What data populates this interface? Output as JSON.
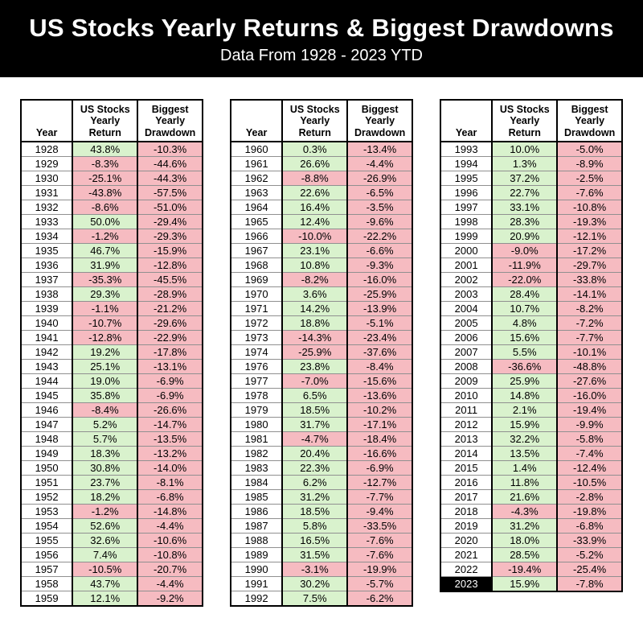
{
  "header": {
    "title": "US Stocks Yearly Returns & Biggest Drawdowns",
    "subtitle": "Data From 1928 - 2023 YTD"
  },
  "colors": {
    "banner_bg": "#000000",
    "banner_text": "#ffffff",
    "positive_bg": "#d9f2cd",
    "negative_bg": "#f6bbc1",
    "highlight_year_bg": "#000000",
    "highlight_year_text": "#ffffff",
    "row_line": "#909090",
    "grid_line": "#000000"
  },
  "chart_data": {
    "type": "table",
    "title": "US Stocks Yearly Returns & Biggest Drawdowns",
    "subtitle": "Data From 1928 - 2023 YTD",
    "columns": [
      "Year",
      "US Stocks Yearly Return",
      "Biggest Yearly Drawdown"
    ],
    "column_header_lines": [
      [
        "Year"
      ],
      [
        "US Stocks",
        "Yearly",
        "Return"
      ],
      [
        "Biggest",
        "Yearly",
        "Drawdown"
      ]
    ],
    "highlight_years": [
      2023
    ],
    "tables": [
      {
        "rows": [
          [
            1928,
            "43.8%",
            "-10.3%"
          ],
          [
            1929,
            "-8.3%",
            "-44.6%"
          ],
          [
            1930,
            "-25.1%",
            "-44.3%"
          ],
          [
            1931,
            "-43.8%",
            "-57.5%"
          ],
          [
            1932,
            "-8.6%",
            "-51.0%"
          ],
          [
            1933,
            "50.0%",
            "-29.4%"
          ],
          [
            1934,
            "-1.2%",
            "-29.3%"
          ],
          [
            1935,
            "46.7%",
            "-15.9%"
          ],
          [
            1936,
            "31.9%",
            "-12.8%"
          ],
          [
            1937,
            "-35.3%",
            "-45.5%"
          ],
          [
            1938,
            "29.3%",
            "-28.9%"
          ],
          [
            1939,
            "-1.1%",
            "-21.2%"
          ],
          [
            1940,
            "-10.7%",
            "-29.6%"
          ],
          [
            1941,
            "-12.8%",
            "-22.9%"
          ],
          [
            1942,
            "19.2%",
            "-17.8%"
          ],
          [
            1943,
            "25.1%",
            "-13.1%"
          ],
          [
            1944,
            "19.0%",
            "-6.9%"
          ],
          [
            1945,
            "35.8%",
            "-6.9%"
          ],
          [
            1946,
            "-8.4%",
            "-26.6%"
          ],
          [
            1947,
            "5.2%",
            "-14.7%"
          ],
          [
            1948,
            "5.7%",
            "-13.5%"
          ],
          [
            1949,
            "18.3%",
            "-13.2%"
          ],
          [
            1950,
            "30.8%",
            "-14.0%"
          ],
          [
            1951,
            "23.7%",
            "-8.1%"
          ],
          [
            1952,
            "18.2%",
            "-6.8%"
          ],
          [
            1953,
            "-1.2%",
            "-14.8%"
          ],
          [
            1954,
            "52.6%",
            "-4.4%"
          ],
          [
            1955,
            "32.6%",
            "-10.6%"
          ],
          [
            1956,
            "7.4%",
            "-10.8%"
          ],
          [
            1957,
            "-10.5%",
            "-20.7%"
          ],
          [
            1958,
            "43.7%",
            "-4.4%"
          ],
          [
            1959,
            "12.1%",
            "-9.2%"
          ]
        ]
      },
      {
        "rows": [
          [
            1960,
            "0.3%",
            "-13.4%"
          ],
          [
            1961,
            "26.6%",
            "-4.4%"
          ],
          [
            1962,
            "-8.8%",
            "-26.9%"
          ],
          [
            1963,
            "22.6%",
            "-6.5%"
          ],
          [
            1964,
            "16.4%",
            "-3.5%"
          ],
          [
            1965,
            "12.4%",
            "-9.6%"
          ],
          [
            1966,
            "-10.0%",
            "-22.2%"
          ],
          [
            1967,
            "23.1%",
            "-6.6%"
          ],
          [
            1968,
            "10.8%",
            "-9.3%"
          ],
          [
            1969,
            "-8.2%",
            "-16.0%"
          ],
          [
            1970,
            "3.6%",
            "-25.9%"
          ],
          [
            1971,
            "14.2%",
            "-13.9%"
          ],
          [
            1972,
            "18.8%",
            "-5.1%"
          ],
          [
            1973,
            "-14.3%",
            "-23.4%"
          ],
          [
            1974,
            "-25.9%",
            "-37.6%"
          ],
          [
            1976,
            "23.8%",
            "-8.4%"
          ],
          [
            1977,
            "-7.0%",
            "-15.6%"
          ],
          [
            1978,
            "6.5%",
            "-13.6%"
          ],
          [
            1979,
            "18.5%",
            "-10.2%"
          ],
          [
            1980,
            "31.7%",
            "-17.1%"
          ],
          [
            1981,
            "-4.7%",
            "-18.4%"
          ],
          [
            1982,
            "20.4%",
            "-16.6%"
          ],
          [
            1983,
            "22.3%",
            "-6.9%"
          ],
          [
            1984,
            "6.2%",
            "-12.7%"
          ],
          [
            1985,
            "31.2%",
            "-7.7%"
          ],
          [
            1986,
            "18.5%",
            "-9.4%"
          ],
          [
            1987,
            "5.8%",
            "-33.5%"
          ],
          [
            1988,
            "16.5%",
            "-7.6%"
          ],
          [
            1989,
            "31.5%",
            "-7.6%"
          ],
          [
            1990,
            "-3.1%",
            "-19.9%"
          ],
          [
            1991,
            "30.2%",
            "-5.7%"
          ],
          [
            1992,
            "7.5%",
            "-6.2%"
          ]
        ]
      },
      {
        "rows": [
          [
            1993,
            "10.0%",
            "-5.0%"
          ],
          [
            1994,
            "1.3%",
            "-8.9%"
          ],
          [
            1995,
            "37.2%",
            "-2.5%"
          ],
          [
            1996,
            "22.7%",
            "-7.6%"
          ],
          [
            1997,
            "33.1%",
            "-10.8%"
          ],
          [
            1998,
            "28.3%",
            "-19.3%"
          ],
          [
            1999,
            "20.9%",
            "-12.1%"
          ],
          [
            2000,
            "-9.0%",
            "-17.2%"
          ],
          [
            2001,
            "-11.9%",
            "-29.7%"
          ],
          [
            2002,
            "-22.0%",
            "-33.8%"
          ],
          [
            2003,
            "28.4%",
            "-14.1%"
          ],
          [
            2004,
            "10.7%",
            "-8.2%"
          ],
          [
            2005,
            "4.8%",
            "-7.2%"
          ],
          [
            2006,
            "15.6%",
            "-7.7%"
          ],
          [
            2007,
            "5.5%",
            "-10.1%"
          ],
          [
            2008,
            "-36.6%",
            "-48.8%"
          ],
          [
            2009,
            "25.9%",
            "-27.6%"
          ],
          [
            2010,
            "14.8%",
            "-16.0%"
          ],
          [
            2011,
            "2.1%",
            "-19.4%"
          ],
          [
            2012,
            "15.9%",
            "-9.9%"
          ],
          [
            2013,
            "32.2%",
            "-5.8%"
          ],
          [
            2014,
            "13.5%",
            "-7.4%"
          ],
          [
            2015,
            "1.4%",
            "-12.4%"
          ],
          [
            2016,
            "11.8%",
            "-10.5%"
          ],
          [
            2017,
            "21.6%",
            "-2.8%"
          ],
          [
            2018,
            "-4.3%",
            "-19.8%"
          ],
          [
            2019,
            "31.2%",
            "-6.8%"
          ],
          [
            2020,
            "18.0%",
            "-33.9%"
          ],
          [
            2021,
            "28.5%",
            "-5.2%"
          ],
          [
            2022,
            "-19.4%",
            "-25.4%"
          ],
          [
            2023,
            "15.9%",
            "-7.8%"
          ]
        ]
      }
    ]
  }
}
